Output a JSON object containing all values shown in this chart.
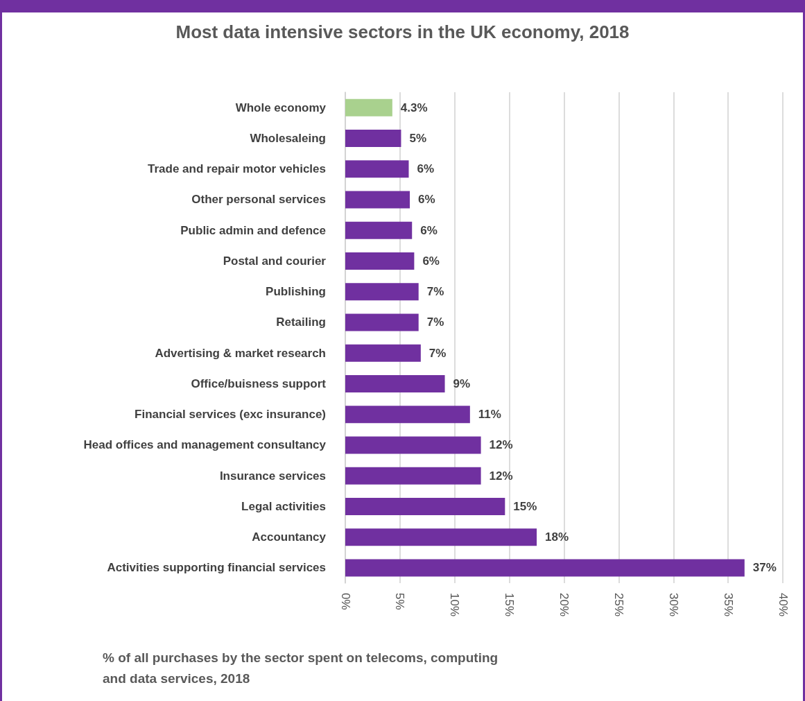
{
  "chart_data": {
    "type": "bar",
    "orientation": "horizontal",
    "title": "Most data intensive sectors in the UK economy, 2018",
    "xlabel": "% of all purchases by the sector spent on telecoms, computing and data services, 2018",
    "categories": [
      "Whole economy",
      "Wholesaleing",
      "Trade and repair motor vehicles",
      "Other personal services",
      "Public admin and defence",
      "Postal and courier",
      "Publishing",
      "Retailing",
      "Advertising & market research",
      "Office/buisness support",
      "Financial services (exc insurance)",
      "Head offices and management consultancy",
      "Insurance services",
      "Legal activities",
      "Accountancy",
      "Activities supporting financial services"
    ],
    "values": [
      4.3,
      5.1,
      5.8,
      5.9,
      6.1,
      6.3,
      6.7,
      6.7,
      6.9,
      9.1,
      11.4,
      12.4,
      12.4,
      14.6,
      17.5,
      36.5
    ],
    "value_labels": [
      "4.3%",
      "5%",
      "6%",
      "6%",
      "6%",
      "6%",
      "7%",
      "7%",
      "7%",
      "9%",
      "11%",
      "12%",
      "12%",
      "15%",
      "18%",
      "37%"
    ],
    "colors": [
      "#a9d18e",
      "#7030a0",
      "#7030a0",
      "#7030a0",
      "#7030a0",
      "#7030a0",
      "#7030a0",
      "#7030a0",
      "#7030a0",
      "#7030a0",
      "#7030a0",
      "#7030a0",
      "#7030a0",
      "#7030a0",
      "#7030a0",
      "#7030a0"
    ],
    "xlim": [
      0,
      40
    ],
    "xticks": [
      {
        "value": 0,
        "label": "0%"
      },
      {
        "value": 5,
        "label": "5%"
      },
      {
        "value": 10,
        "label": "10%"
      },
      {
        "value": 15,
        "label": "15%"
      },
      {
        "value": 20,
        "label": "20%"
      },
      {
        "value": 25,
        "label": "25%"
      },
      {
        "value": 30,
        "label": "30%"
      },
      {
        "value": 35,
        "label": "35%"
      },
      {
        "value": 40,
        "label": "40%"
      }
    ],
    "grid": "x"
  }
}
